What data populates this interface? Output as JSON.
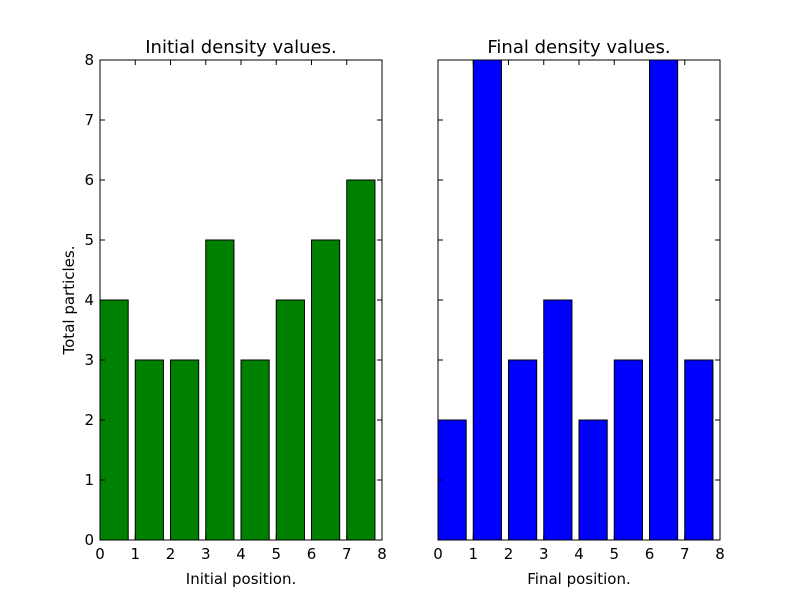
{
  "chart_data": [
    {
      "type": "bar",
      "title": "Initial density values.",
      "xlabel": "Initial position.",
      "ylabel": "Total particles.",
      "x": [
        0,
        1,
        2,
        3,
        4,
        5,
        6,
        7
      ],
      "values": [
        4,
        3,
        3,
        5,
        3,
        4,
        5,
        6
      ],
      "bar_width": 0.8,
      "color": "#008000",
      "xlim": [
        0,
        8
      ],
      "ylim": [
        0,
        8
      ],
      "xticks": [
        "0",
        "1",
        "2",
        "3",
        "4",
        "5",
        "6",
        "7",
        "8"
      ],
      "yticks": [
        "0",
        "1",
        "2",
        "3",
        "4",
        "5",
        "6",
        "7",
        "8"
      ],
      "show_yticklabels": true,
      "grid": false
    },
    {
      "type": "bar",
      "title": "Final density values.",
      "xlabel": "Final position.",
      "ylabel": "",
      "x": [
        0,
        1,
        2,
        3,
        4,
        5,
        6,
        7
      ],
      "values": [
        2,
        8,
        3,
        4,
        2,
        3,
        8,
        3
      ],
      "bar_width": 0.8,
      "color": "#0000ff",
      "xlim": [
        0,
        8
      ],
      "ylim": [
        0,
        8
      ],
      "xticks": [
        "0",
        "1",
        "2",
        "3",
        "4",
        "5",
        "6",
        "7",
        "8"
      ],
      "yticks": [
        "0",
        "1",
        "2",
        "3",
        "4",
        "5",
        "6",
        "7",
        "8"
      ],
      "show_yticklabels": false,
      "grid": false
    }
  ]
}
